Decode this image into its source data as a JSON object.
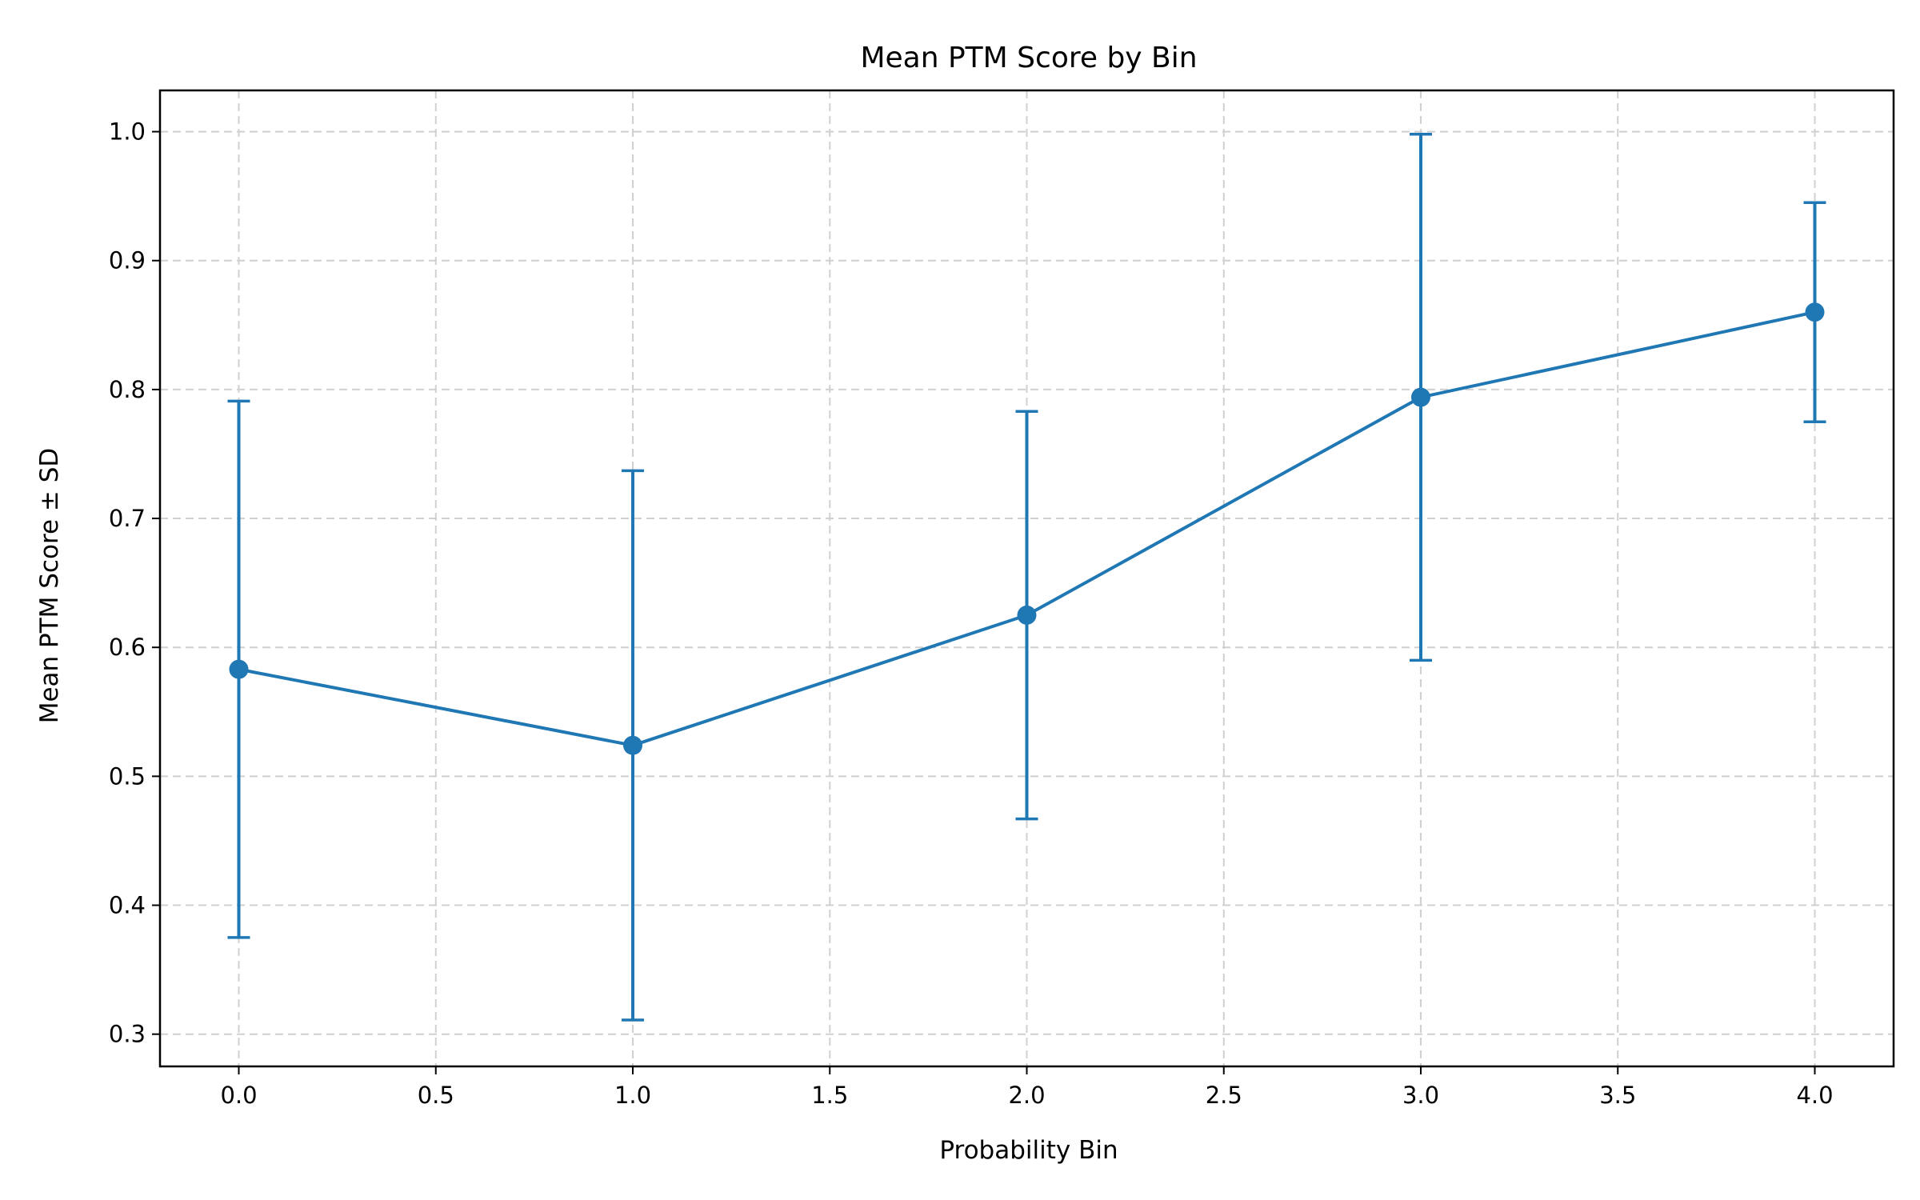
{
  "chart_data": {
    "type": "line",
    "title": "Mean PTM Score by Bin",
    "xlabel": "Probability Bin",
    "ylabel": "Mean PTM Score ± SD",
    "xlim": [
      -0.2,
      4.2
    ],
    "ylim": [
      0.275,
      1.032
    ],
    "xticks": [
      0.0,
      0.5,
      1.0,
      1.5,
      2.0,
      2.5,
      3.0,
      3.5,
      4.0
    ],
    "xtick_labels": [
      "0.0",
      "0.5",
      "1.0",
      "1.5",
      "2.0",
      "2.5",
      "3.0",
      "3.5",
      "4.0"
    ],
    "yticks": [
      0.3,
      0.4,
      0.5,
      0.6,
      0.7,
      0.8,
      0.9,
      1.0
    ],
    "ytick_labels": [
      "0.3",
      "0.4",
      "0.5",
      "0.6",
      "0.7",
      "0.8",
      "0.9",
      "1.0"
    ],
    "grid": true,
    "color": "#1f77b4",
    "series": [
      {
        "x": [
          0,
          1,
          2,
          3,
          4
        ],
        "y": [
          0.583,
          0.524,
          0.625,
          0.794,
          0.86
        ],
        "err": [
          0.208,
          0.213,
          0.158,
          0.204,
          0.085
        ]
      }
    ]
  }
}
